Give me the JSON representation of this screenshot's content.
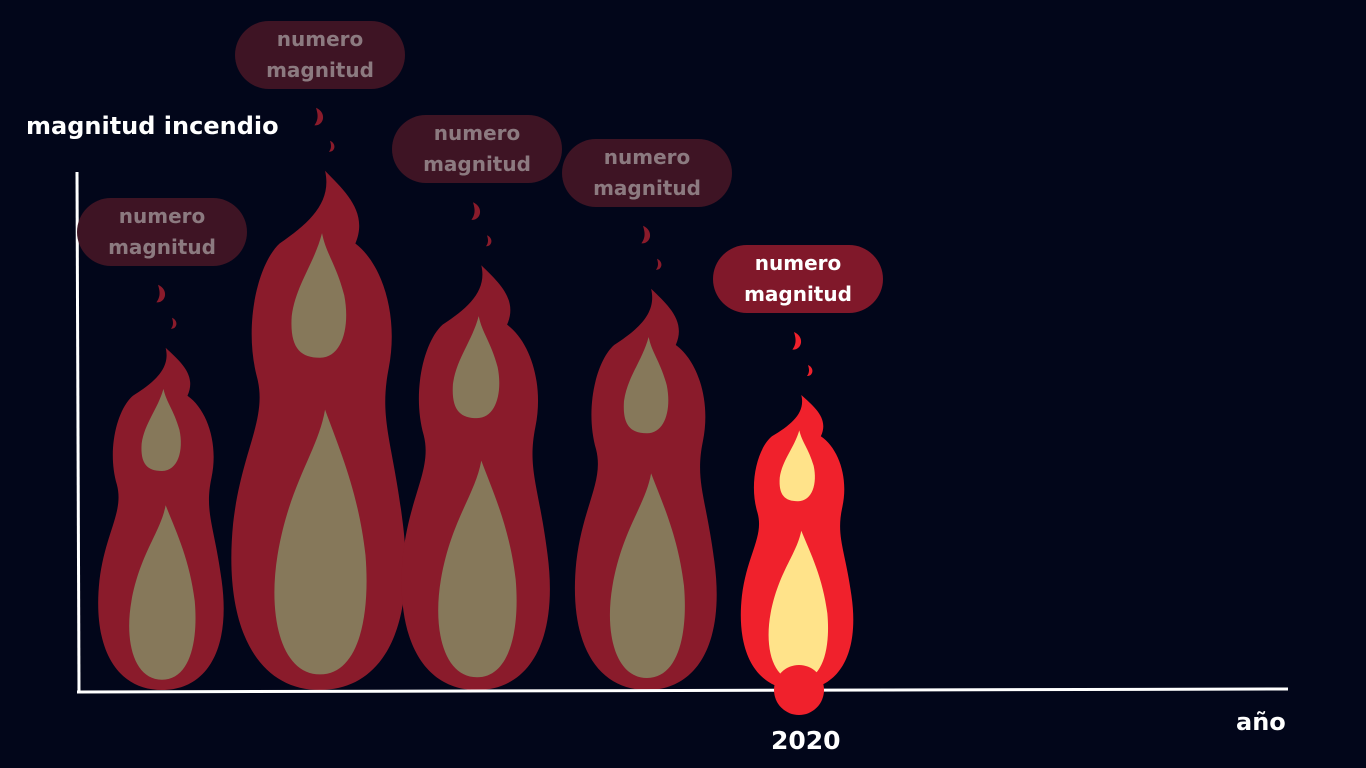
{
  "chart_data": {
    "type": "bar",
    "ylabel": "magnitud incendio",
    "xlabel": "año",
    "highlight_label": "2020",
    "series": [
      {
        "bubble": [
          "numero",
          "magnitud"
        ],
        "value": 0.29,
        "highlight": false
      },
      {
        "bubble": [
          "numero",
          "magnitud"
        ],
        "value": 0.44,
        "highlight": false
      },
      {
        "bubble": [
          "numero",
          "magnitud"
        ],
        "value": 0.36,
        "highlight": false
      },
      {
        "bubble": [
          "numero",
          "magnitud"
        ],
        "value": 0.34,
        "highlight": false
      },
      {
        "bubble": [
          "numero",
          "magnitud"
        ],
        "value": 0.25,
        "highlight": true
      }
    ]
  },
  "colors": {
    "background": "#02061a",
    "axis": "#ffffff",
    "flame_outer_dim": "#8a1b2b",
    "flame_inner_dim": "#86785a",
    "flame_outer_hot": "#f0212c",
    "flame_inner_hot": "#ffe38a",
    "dot_hot": "#f0212c"
  },
  "icons": [
    "fire-icon"
  ]
}
